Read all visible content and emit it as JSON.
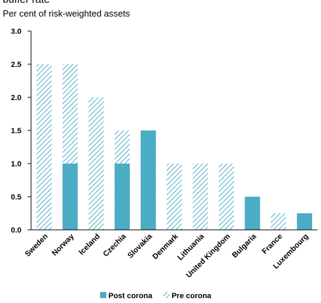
{
  "chart_data": {
    "type": "bar",
    "title": "buffer rate",
    "subtitle": "Per cent of risk-weighted assets",
    "categories": [
      "Sweden",
      "Norway",
      "Iceland",
      "Czechia",
      "Slovakia",
      "Denmark",
      "Lithuania",
      "United Kingdom",
      "Bulgaria",
      "France",
      "Luxembourg"
    ],
    "series": [
      {
        "name": "Pre corona",
        "color": "#4bacc6",
        "pattern": "hatch",
        "values": [
          2.5,
          2.5,
          2.0,
          1.5,
          1.5,
          1.0,
          1.0,
          1.0,
          0.5,
          0.25,
          0.25
        ]
      },
      {
        "name": "Post corona",
        "color": "#4bacc6",
        "pattern": "solid",
        "values": [
          0,
          1.0,
          0,
          1.0,
          1.5,
          0,
          0,
          0,
          0.5,
          0,
          0.25
        ]
      }
    ],
    "legend_order": [
      1,
      0
    ],
    "ylim": [
      0,
      3
    ],
    "yticks": [
      {
        "value": 0,
        "label": "0.0"
      },
      0.5,
      {
        "value": 1,
        "label": "1.0"
      },
      1.5,
      {
        "value": 2,
        "label": "2.0"
      },
      2.5,
      {
        "value": 3,
        "label": "3.0"
      }
    ],
    "legend": "bottom"
  }
}
